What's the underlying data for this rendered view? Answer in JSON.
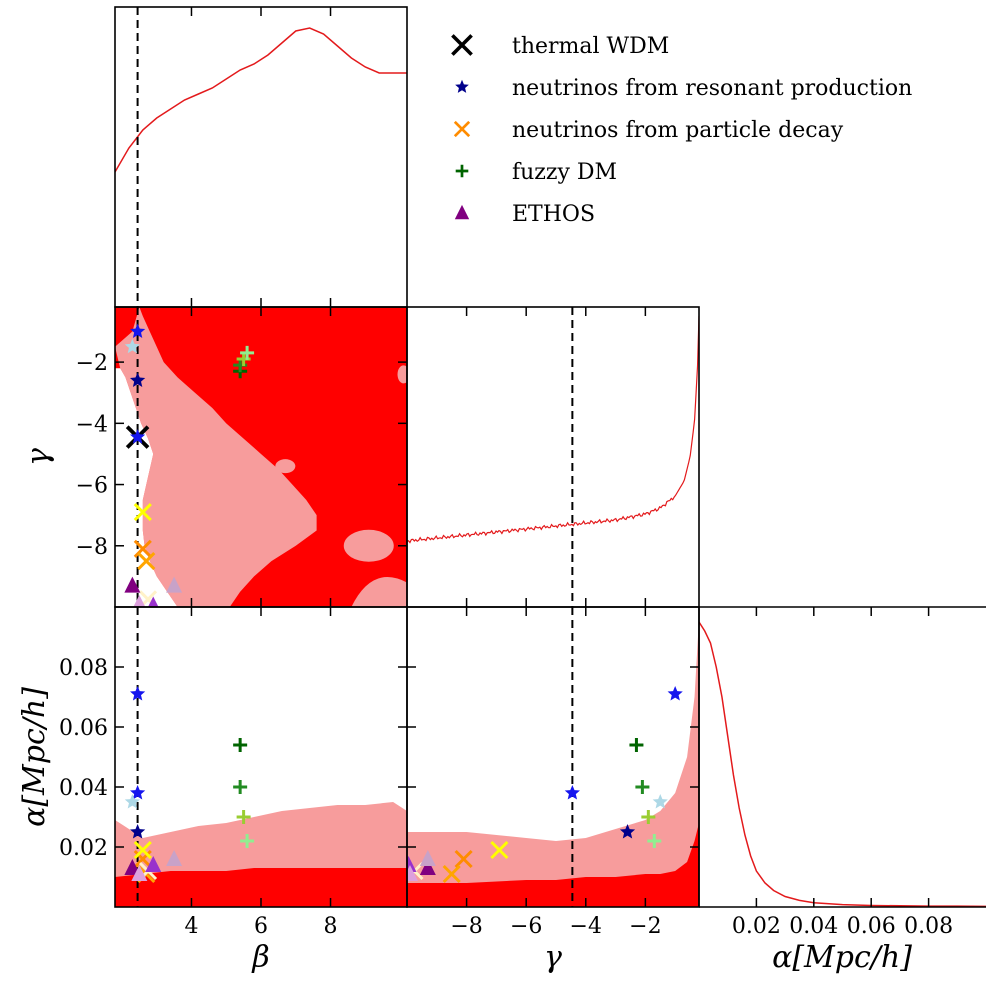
{
  "chart_data": {
    "type": "scatter",
    "title": "",
    "parameters": [
      "β",
      "γ",
      "α[Mpc/h]"
    ],
    "axes": {
      "beta": {
        "label": "β",
        "range": [
          1.8,
          10.2
        ],
        "ticks": [
          4,
          6,
          8
        ],
        "tick_labels": [
          "4",
          "6",
          "8"
        ]
      },
      "gamma": {
        "label": "γ",
        "range": [
          -10.0,
          -0.2
        ],
        "ticks": [
          -8,
          -6,
          -4,
          -2
        ],
        "tick_labels": [
          "−8",
          "−6",
          "−4",
          "−2"
        ]
      },
      "alpha": {
        "label": "α[Mpc/h]",
        "range": [
          0.0,
          0.1
        ],
        "ticks": [
          0.02,
          0.04,
          0.06,
          0.08
        ],
        "tick_labels": [
          "0.02",
          "0.04",
          "0.06",
          "0.08"
        ]
      }
    },
    "thermal_wdm_reference": {
      "beta": 2.45,
      "gamma": -4.45
    },
    "colors": {
      "contour_68": "#ff0000",
      "contour_95": "#f79c9c",
      "marginal_line": "#e31a1c",
      "reference_line": "#000000"
    },
    "legend": {
      "placement": "top-right",
      "entries": [
        {
          "label": "thermal WDM",
          "marker": "x",
          "color": "#000000"
        },
        {
          "label": "neutrinos from resonant production",
          "marker": "star",
          "color": "#00008b"
        },
        {
          "label": "neutrinos from particle decay",
          "marker": "x",
          "color": "#ff8c00"
        },
        {
          "label": "fuzzy DM",
          "marker": "plus",
          "color": "#006400"
        },
        {
          "label": "ETHOS",
          "marker": "triangle",
          "color": "#800080"
        }
      ]
    },
    "models": [
      {
        "label": "thermal WDM",
        "marker": "x",
        "color": "#000000",
        "beta": 2.45,
        "gamma": -4.45,
        "alpha": null
      },
      {
        "label": "neutrinos from resonant production",
        "marker": "star",
        "color": "#00008b",
        "beta": 2.45,
        "gamma": -2.6,
        "alpha": 0.025
      },
      {
        "label": "neutrinos from resonant production",
        "marker": "star",
        "color": "#1515ee",
        "beta": 2.45,
        "gamma": -1.0,
        "alpha": 0.071
      },
      {
        "label": "neutrinos from resonant production",
        "marker": "star",
        "color": "#1515ee",
        "beta": 2.45,
        "gamma": -4.45,
        "alpha": 0.038
      },
      {
        "label": "neutrinos from resonant production",
        "marker": "star",
        "color": "#add8e6",
        "beta": 2.3,
        "gamma": -1.5,
        "alpha": 0.035
      },
      {
        "label": "neutrinos from particle decay",
        "marker": "x",
        "color": "#ff8c00",
        "beta": 2.6,
        "gamma": -8.1,
        "alpha": 0.016
      },
      {
        "label": "neutrinos from particle decay",
        "marker": "x",
        "color": "#ffa500",
        "beta": 2.7,
        "gamma": -8.5,
        "alpha": 0.011
      },
      {
        "label": "neutrinos from particle decay",
        "marker": "x",
        "color": "#ffff00",
        "beta": 2.6,
        "gamma": -6.9,
        "alpha": 0.019
      },
      {
        "label": "neutrinos from particle decay",
        "marker": "x",
        "color": "#fff2c8",
        "beta": 2.75,
        "gamma": -9.75,
        "alpha": 0.012
      },
      {
        "label": "fuzzy DM",
        "marker": "plus",
        "color": "#006400",
        "beta": 5.4,
        "gamma": -2.3,
        "alpha": 0.054
      },
      {
        "label": "fuzzy DM",
        "marker": "plus",
        "color": "#228b22",
        "beta": 5.4,
        "gamma": -2.1,
        "alpha": 0.04
      },
      {
        "label": "fuzzy DM",
        "marker": "plus",
        "color": "#9acd32",
        "beta": 5.5,
        "gamma": -1.9,
        "alpha": 0.03
      },
      {
        "label": "fuzzy DM",
        "marker": "plus",
        "color": "#90ee90",
        "beta": 5.6,
        "gamma": -1.7,
        "alpha": 0.022
      },
      {
        "label": "ETHOS",
        "marker": "triangle",
        "color": "#800080",
        "beta": 2.3,
        "gamma": -9.3,
        "alpha": 0.013
      },
      {
        "label": "ETHOS",
        "marker": "triangle",
        "color": "#9932cc",
        "beta": 2.9,
        "gamma": -9.95,
        "alpha": 0.014
      },
      {
        "label": "ETHOS",
        "marker": "triangle",
        "color": "#c8a2c8",
        "beta": 3.5,
        "gamma": -9.3,
        "alpha": 0.016
      },
      {
        "label": "ETHOS",
        "marker": "triangle",
        "color": "#dda0dd",
        "beta": 2.5,
        "gamma": -9.9,
        "alpha": 0.011
      }
    ],
    "marginals": {
      "beta": {
        "x": [
          1.8,
          2.2,
          2.6,
          3.0,
          3.4,
          3.8,
          4.2,
          4.6,
          5.0,
          5.4,
          5.8,
          6.2,
          6.6,
          7.0,
          7.4,
          7.8,
          8.2,
          8.6,
          9.0,
          9.4,
          9.8,
          10.2
        ],
        "density": [
          0.45,
          0.53,
          0.59,
          0.63,
          0.66,
          0.69,
          0.71,
          0.73,
          0.76,
          0.79,
          0.81,
          0.84,
          0.88,
          0.92,
          0.93,
          0.91,
          0.87,
          0.83,
          0.8,
          0.78,
          0.78,
          0.78
        ]
      },
      "gamma": {
        "x": [
          -10.0,
          -9.0,
          -8.0,
          -7.0,
          -6.0,
          -5.0,
          -4.0,
          -3.0,
          -2.0,
          -1.5,
          -1.0,
          -0.7,
          -0.5,
          -0.35,
          -0.25,
          -0.2
        ],
        "density": [
          0.22,
          0.23,
          0.24,
          0.25,
          0.26,
          0.27,
          0.28,
          0.29,
          0.31,
          0.33,
          0.37,
          0.42,
          0.5,
          0.62,
          0.8,
          0.97
        ]
      },
      "alpha": {
        "x": [
          0.0,
          0.002,
          0.004,
          0.006,
          0.008,
          0.01,
          0.012,
          0.014,
          0.016,
          0.018,
          0.02,
          0.023,
          0.026,
          0.03,
          0.035,
          0.04,
          0.05,
          0.06,
          0.07,
          0.08,
          0.09,
          0.1
        ],
        "density": [
          0.95,
          0.92,
          0.88,
          0.8,
          0.7,
          0.57,
          0.44,
          0.33,
          0.24,
          0.17,
          0.12,
          0.08,
          0.055,
          0.035,
          0.022,
          0.014,
          0.008,
          0.005,
          0.004,
          0.003,
          0.003,
          0.002
        ]
      }
    },
    "contours": {
      "beta_gamma": {
        "95_boundary_beta_by_gamma": {
          "gamma": [
            -10.0,
            -9.5,
            -9.0,
            -8.5,
            -8.0,
            -7.5,
            -7.0,
            -6.5,
            -6.0,
            -5.5,
            -5.0,
            -4.5,
            -4.0,
            -3.5,
            -3.0,
            -2.5,
            -2.2
          ],
          "beta": [
            3.6,
            3.3,
            3.0,
            2.8,
            2.65,
            2.6,
            2.6,
            2.6,
            2.7,
            2.8,
            2.9,
            2.75,
            2.55,
            2.4,
            2.25,
            2.1,
            1.95
          ]
        },
        "68_boundary_beta_by_gamma": {
          "gamma": [
            -10.0,
            -9.5,
            -9.0,
            -8.5,
            -8.0,
            -7.5,
            -7.0,
            -6.5,
            -6.0,
            -5.5,
            -5.0,
            -4.5,
            -4.0,
            -3.5,
            -3.0,
            -2.5,
            -2.0,
            -1.5,
            -1.0,
            -0.5,
            -0.2
          ],
          "beta": [
            5.1,
            5.4,
            5.8,
            6.3,
            7.0,
            7.6,
            7.6,
            7.3,
            6.9,
            6.5,
            6.0,
            5.5,
            5.0,
            4.6,
            4.1,
            3.6,
            3.2,
            3.0,
            2.8,
            2.6,
            2.5
          ]
        }
      },
      "beta_alpha": {
        "beta": [
          1.8,
          2.6,
          3.4,
          4.2,
          5.0,
          5.8,
          6.6,
          7.4,
          8.2,
          9.0,
          9.8,
          10.2
        ],
        "alpha_95_upper": [
          0.029,
          0.023,
          0.025,
          0.027,
          0.028,
          0.03,
          0.032,
          0.033,
          0.034,
          0.034,
          0.035,
          0.032
        ],
        "alpha_68_upper": [
          0.01,
          0.011,
          0.012,
          0.012,
          0.012,
          0.013,
          0.013,
          0.013,
          0.013,
          0.013,
          0.013,
          0.013
        ]
      },
      "gamma_alpha": {
        "gamma": [
          -10.0,
          -8.0,
          -6.0,
          -5.0,
          -4.0,
          -3.0,
          -2.0,
          -1.5,
          -1.0,
          -0.6,
          -0.35,
          -0.2
        ],
        "alpha_95_upper": [
          0.025,
          0.025,
          0.023,
          0.022,
          0.023,
          0.026,
          0.029,
          0.032,
          0.038,
          0.05,
          0.07,
          0.096
        ],
        "alpha_68_lower_bound": [
          0.008,
          0.008,
          0.009,
          0.009,
          0.01,
          0.01,
          0.011,
          0.011,
          0.012,
          0.015,
          0.022,
          0.028
        ]
      }
    }
  }
}
